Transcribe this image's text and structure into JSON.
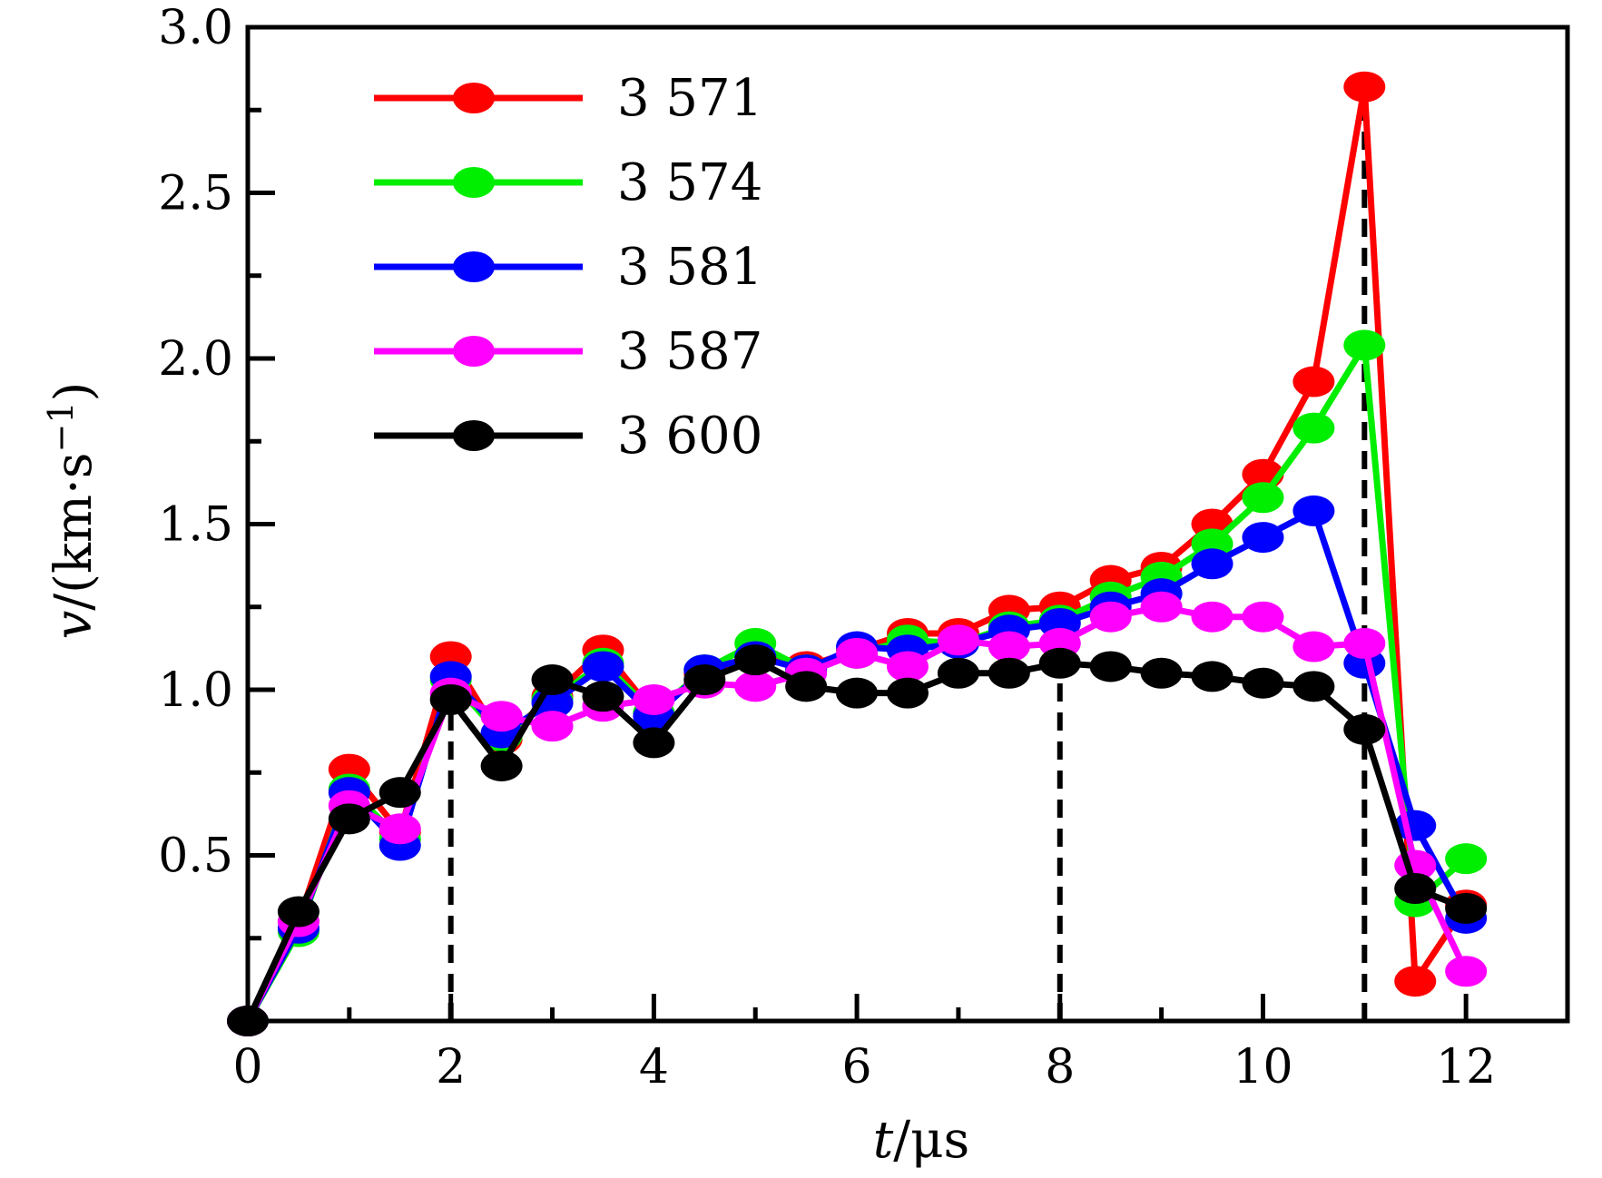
{
  "chart_data": {
    "type": "line",
    "xlabel": {
      "var": "t",
      "unit": "/μs"
    },
    "ylabel": {
      "var": "v",
      "unit": "/(km·s",
      "sup": "−1",
      "close": ")"
    },
    "xlim": [
      0,
      13
    ],
    "ylim": [
      0,
      3.0
    ],
    "xticks": [
      0,
      2,
      4,
      6,
      8,
      10,
      12
    ],
    "yticks": [
      0.5,
      1.0,
      1.5,
      2.0,
      2.5,
      3.0
    ],
    "xtick_labels": [
      "0",
      "2",
      "4",
      "6",
      "8",
      "10",
      "12"
    ],
    "ytick_labels": [
      "0.5",
      "1.0",
      "1.5",
      "2.0",
      "2.5",
      "3.0"
    ],
    "x": [
      0,
      0.5,
      1,
      1.5,
      2,
      2.5,
      3,
      3.5,
      4,
      4.5,
      5,
      5.5,
      6,
      6.5,
      7,
      7.5,
      8,
      8.5,
      9,
      9.5,
      10,
      10.5,
      11,
      11.5,
      12
    ],
    "series": [
      {
        "name": "3 571",
        "color": "#ff0000",
        "values": [
          0.0,
          0.3,
          0.76,
          0.57,
          1.1,
          0.85,
          0.98,
          1.12,
          0.93,
          1.05,
          1.1,
          1.07,
          1.12,
          1.17,
          1.17,
          1.24,
          1.25,
          1.33,
          1.37,
          1.5,
          1.65,
          1.93,
          2.82,
          0.12,
          0.35
        ]
      },
      {
        "name": "3 574",
        "color": "#00ee00",
        "values": [
          0.0,
          0.27,
          0.7,
          0.55,
          1.03,
          0.86,
          0.97,
          1.08,
          0.93,
          1.06,
          1.14,
          1.06,
          1.11,
          1.15,
          1.14,
          1.19,
          1.21,
          1.28,
          1.34,
          1.44,
          1.58,
          1.79,
          2.04,
          0.36,
          0.49
        ]
      },
      {
        "name": "3 581",
        "color": "#0000ff",
        "values": [
          0.0,
          0.28,
          0.69,
          0.53,
          1.04,
          0.87,
          0.96,
          1.07,
          0.92,
          1.06,
          1.1,
          1.06,
          1.13,
          1.12,
          1.14,
          1.18,
          1.2,
          1.25,
          1.29,
          1.38,
          1.46,
          1.54,
          1.08,
          0.59,
          0.31
        ]
      },
      {
        "name": "3 587",
        "color": "#ff00ff",
        "values": [
          0.0,
          0.3,
          0.65,
          0.58,
          0.99,
          0.92,
          0.89,
          0.95,
          0.97,
          1.02,
          1.01,
          1.05,
          1.11,
          1.07,
          1.15,
          1.13,
          1.14,
          1.22,
          1.25,
          1.22,
          1.22,
          1.13,
          1.14,
          0.47,
          0.15
        ]
      },
      {
        "name": "3 600",
        "color": "#000000",
        "values": [
          0.0,
          0.33,
          0.61,
          0.69,
          0.97,
          0.77,
          1.03,
          0.98,
          0.84,
          1.03,
          1.09,
          1.01,
          0.99,
          0.99,
          1.05,
          1.05,
          1.08,
          1.07,
          1.05,
          1.04,
          1.02,
          1.01,
          0.88,
          0.4,
          0.34
        ]
      }
    ],
    "reference_lines_x": [
      2,
      8,
      11
    ],
    "legend_position": "top-left",
    "grid": false
  }
}
